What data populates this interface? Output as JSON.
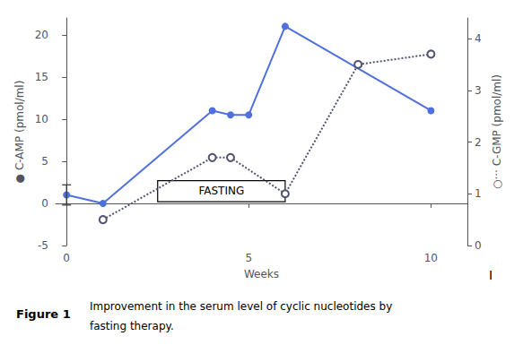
{
  "chart_data": {
    "type": "line",
    "xlabel": "Weeks",
    "ylabel": "● C-AMP (pmol/ml)",
    "y2label": "○··· C-GMP (pmol/ml)",
    "xlim": [
      -0.3,
      11
    ],
    "xticks": [
      0,
      5,
      10
    ],
    "ylim": [
      -5,
      22
    ],
    "yticks": [
      -5,
      0,
      5,
      10,
      15,
      20
    ],
    "y2lim": [
      0,
      4.4
    ],
    "y2ticks": [
      0,
      1,
      2,
      3,
      4
    ],
    "grid": false,
    "series": [
      {
        "x": [
          0,
          1,
          4,
          4.5,
          5,
          6,
          10
        ],
        "values": [
          1,
          0,
          11,
          10.5,
          10.5,
          21,
          11
        ],
        "yerr": [
          1.2,
          null,
          null,
          null,
          null,
          null,
          null
        ],
        "marker": "circle",
        "line_style": "solid"
      },
      {
        "x": [
          1,
          4,
          4.5,
          6,
          8,
          10
        ],
        "values": [
          0.5,
          1.7,
          1.7,
          1.0,
          3.5,
          3.7
        ],
        "axis": "y2",
        "marker": "hollow",
        "line_style": "dotted"
      }
    ],
    "annotations": [
      {
        "text": "FASTING",
        "x": [
          2.5,
          6
        ],
        "y": [
          0.2,
          2.7
        ]
      },
      {
        "text": "I"
      }
    ],
    "figure_label": "Figure 1",
    "caption": [
      "Improvement in the serum level of cyclic nucleotides by",
      "fasting therapy."
    ]
  }
}
